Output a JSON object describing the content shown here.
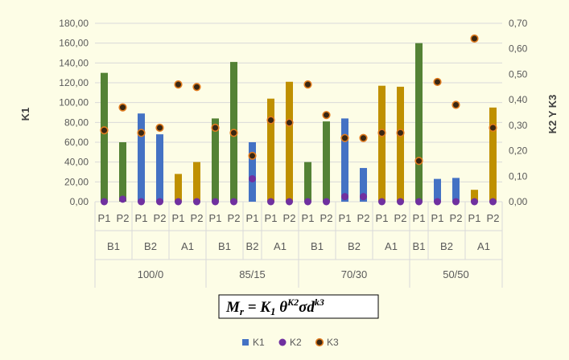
{
  "chart_data": {
    "type": "bar",
    "ylabel_left": "K1",
    "ylabel_right": "K2 Y K3",
    "ylim_left": [
      0,
      180
    ],
    "ylim_right": [
      0,
      0.7
    ],
    "yticks_left": [
      "0,00",
      "20,00",
      "40,00",
      "60,00",
      "80,00",
      "100,00",
      "120,00",
      "140,00",
      "160,00",
      "180,00"
    ],
    "yticks_right": [
      "0,00",
      "0,10",
      "0,20",
      "0,30",
      "0,40",
      "0,50",
      "0,60",
      "0,70"
    ],
    "formula": "Mr = K1 θ^K2 σ d^k3",
    "groups": [
      {
        "label": "100/0",
        "subgroups": [
          {
            "label": "B1",
            "labels": [
              "P1",
              "P2"
            ],
            "k1": [
              130,
              60
            ],
            "k2": [
              0,
              0.01
            ],
            "k3": [
              0.28,
              0.37
            ]
          },
          {
            "label": "B2",
            "labels": [
              "P1",
              "P2"
            ],
            "k1": [
              89,
              68
            ],
            "k2": [
              0,
              0
            ],
            "k3": [
              0.27,
              0.29
            ]
          },
          {
            "label": "A1",
            "labels": [
              "P1",
              "P2"
            ],
            "k1": [
              28,
              40
            ],
            "k2": [
              0,
              0
            ],
            "k3": [
              0.46,
              0.45
            ]
          }
        ]
      },
      {
        "label": "85/15",
        "subgroups": [
          {
            "label": "B1",
            "labels": [
              "P1",
              "P2"
            ],
            "k1": [
              84,
              141
            ],
            "k2": [
              0,
              0
            ],
            "k3": [
              0.29,
              0.27
            ]
          },
          {
            "label": "B2",
            "labels": [
              "P1"
            ],
            "k1": [
              60
            ],
            "k2": [
              0.09
            ],
            "k3": [
              0.18
            ]
          },
          {
            "label": "A1",
            "labels": [
              "P1",
              "P2"
            ],
            "k1": [
              104,
              121
            ],
            "k2": [
              0,
              0
            ],
            "k3": [
              0.32,
              0.31
            ]
          }
        ]
      },
      {
        "label": "70/30",
        "subgroups": [
          {
            "label": "B1",
            "labels": [
              "P1",
              "P2"
            ],
            "k1": [
              40,
              81
            ],
            "k2": [
              0,
              0
            ],
            "k3": [
              0.46,
              0.34
            ]
          },
          {
            "label": "B2",
            "labels": [
              "P1",
              "P2"
            ],
            "k1": [
              84,
              34
            ],
            "k2": [
              0.02,
              0.02
            ],
            "k3": [
              0.25,
              0.25
            ]
          },
          {
            "label": "A1",
            "labels": [
              "P1",
              "P2"
            ],
            "k1": [
              117,
              116
            ],
            "k2": [
              0,
              0
            ],
            "k3": [
              0.27,
              0.27
            ]
          }
        ]
      },
      {
        "label": "50/50",
        "subgroups": [
          {
            "label": "B1",
            "labels": [
              "P1"
            ],
            "k1": [
              160
            ],
            "k2": [
              0
            ],
            "k3": [
              0.16
            ]
          },
          {
            "label": "B2",
            "labels": [
              "P1",
              "P2"
            ],
            "k1": [
              23,
              24
            ],
            "k2": [
              0,
              0
            ],
            "k3": [
              0.47,
              0.38
            ]
          },
          {
            "label": "A1",
            "labels": [
              "P1",
              "P2"
            ],
            "k1": [
              12,
              95
            ],
            "k2": [
              0,
              0
            ],
            "k3": [
              0.64,
              0.29
            ]
          }
        ]
      }
    ],
    "legend": [
      {
        "key": "k1",
        "name": "K1",
        "marker": "square"
      },
      {
        "key": "k2",
        "name": "K2",
        "marker": "circle"
      },
      {
        "key": "k3",
        "name": "K3",
        "marker": "circle"
      }
    ]
  },
  "colors": {
    "B1": "#548235",
    "B2": "#4472c4",
    "A1": "#bf9000",
    "k1_legend": "#4472c4",
    "k2": "#7030a0",
    "k3_fill": "#3a2712",
    "k3_edge": "#e07b1f",
    "grid": "#d9d9d9",
    "background": "#fdfde6"
  }
}
